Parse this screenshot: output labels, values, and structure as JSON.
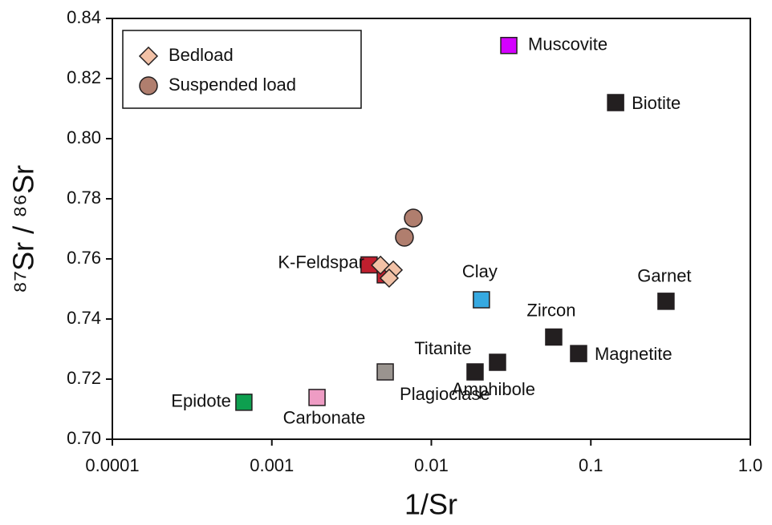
{
  "chart_data": {
    "type": "scatter",
    "xlabel": "1/Sr",
    "ylabel": "⁸⁷Sr / ⁸⁶Sr",
    "xscale": "log",
    "xlim": [
      0.0001,
      1.0
    ],
    "xticks": [
      0.0001,
      0.001,
      0.01,
      0.1,
      {
        "value": 1.0,
        "label": "1.0"
      }
    ],
    "ylim": [
      0.7,
      0.84
    ],
    "yticks": [
      {
        "value": 0.7,
        "label": "0.70"
      },
      0.72,
      0.74,
      0.76,
      0.78,
      {
        "value": 0.8,
        "label": "0.80"
      },
      0.82,
      0.84
    ],
    "legend": "upper left",
    "series": [
      {
        "name": "Bedload",
        "color": "#f2c1a6",
        "marker": "diamond",
        "x": [
          0.0048,
          0.00577,
          0.00544
        ],
        "y": [
          0.7579,
          0.7563,
          0.7536
        ]
      },
      {
        "name": "Suspended load",
        "color": "#b07e6e",
        "marker": "circle",
        "x": [
          0.00771,
          0.00678
        ],
        "y": [
          0.7736,
          0.7672
        ]
      }
    ],
    "minerals": [
      {
        "label": "Muscovite",
        "x": 0.0306,
        "y": 0.831,
        "color": "#d400ff"
      },
      {
        "label": "Biotite",
        "x": 0.143,
        "y": 0.812,
        "color": "#231f20"
      },
      {
        "label": null,
        "x": 0.00514,
        "y": 0.7547,
        "color": "#c01f2e"
      },
      {
        "label": "K-Feldspar",
        "x": 0.00407,
        "y": 0.758,
        "color": "#c01f2e"
      },
      {
        "label": "Clay",
        "x": 0.0206,
        "y": 0.7464,
        "color": "#36a9e1"
      },
      {
        "label": "Garnet",
        "x": 0.296,
        "y": 0.7459,
        "color": "#231f20"
      },
      {
        "label": "Zircon",
        "x": 0.0585,
        "y": 0.734,
        "color": "#231f20"
      },
      {
        "label": "Magnetite",
        "x": 0.0838,
        "y": 0.7285,
        "color": "#231f20"
      },
      {
        "label": "Titanite",
        "x": 0.0188,
        "y": 0.7224,
        "color": "#231f20"
      },
      {
        "label": "Amphibole",
        "x": 0.026,
        "y": 0.7256,
        "color": "#231f20"
      },
      {
        "label": "Plagioclase",
        "x": 0.00514,
        "y": 0.7224,
        "color": "#9a948f"
      },
      {
        "label": "Carbonate",
        "x": 0.00192,
        "y": 0.7139,
        "color": "#ee9cc4"
      },
      {
        "label": "Epidote",
        "x": 0.000668,
        "y": 0.7123,
        "color": "#0e9f4f"
      }
    ]
  }
}
